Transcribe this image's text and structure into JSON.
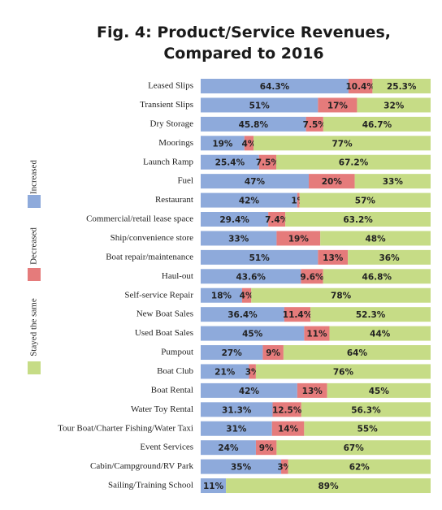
{
  "chart_data": {
    "type": "stacked-bar-horizontal",
    "title": [
      "Fig. 4: Product/Service Revenues,",
      "Compared to 2016"
    ],
    "categories": [
      "Leased Slips",
      "Transient Slips",
      "Dry Storage",
      "Moorings",
      "Launch Ramp",
      "Fuel",
      "Restaurant",
      "Commercial/retail lease space",
      "Ship/convenience store",
      "Boat repair/maintenance",
      "Haul-out",
      "Self-service Repair",
      "New Boat Sales",
      "Used Boat Sales",
      "Pumpout",
      "Boat Club",
      "Boat Rental",
      "Water Toy Rental",
      "Tour Boat/Charter Fishing/Water Taxi",
      "Event Services",
      "Cabin/Campground/RV Park",
      "Sailing/Training School"
    ],
    "series": [
      {
        "name": "Increased",
        "color": "#8eaadb",
        "values": [
          64.3,
          51,
          45.8,
          19,
          25.4,
          47,
          42,
          29.4,
          33,
          51,
          43.6,
          18,
          36.4,
          45,
          27,
          21,
          42,
          31.3,
          31,
          24,
          35,
          11
        ],
        "value_labels": [
          "64.3%",
          "51%",
          "45.8%",
          "19%",
          "25.4%",
          "47%",
          "42%",
          "29.4%",
          "33%",
          "51%",
          "43.6%",
          "18%",
          "36.4%",
          "45%",
          "27%",
          "21%",
          "42%",
          "31.3%",
          "31%",
          "24%",
          "35%",
          "11%"
        ]
      },
      {
        "name": "Decreased",
        "color": "#e57b7b",
        "values": [
          10.4,
          17,
          7.5,
          4,
          7.5,
          20,
          1,
          7.4,
          19,
          13,
          9.6,
          4,
          11.4,
          11,
          9,
          3,
          13,
          12.5,
          14,
          9,
          3,
          null
        ],
        "value_labels": [
          "10.4%",
          "17%",
          "7.5%",
          "4%",
          "7.5%",
          "20%",
          "1%",
          "7.4%",
          "19%",
          "13%",
          "9.6%",
          "4%",
          "11.4%",
          "11%",
          "9%",
          "3%",
          "13%",
          "12.5%",
          "14%",
          "9%",
          "3%",
          null
        ]
      },
      {
        "name": "Stayed the same",
        "color": "#c6dc86",
        "values": [
          25.3,
          32,
          46.7,
          77,
          67.2,
          33,
          57,
          63.2,
          48,
          36,
          46.8,
          78,
          52.3,
          44,
          64,
          76,
          45,
          56.3,
          55,
          67,
          62,
          89
        ],
        "value_labels": [
          "25.3%",
          "32%",
          "46.7%",
          "77%",
          "67.2%",
          "33%",
          "57%",
          "63.2%",
          "48%",
          "36%",
          "46.8%",
          "78%",
          "52.3%",
          "44%",
          "64%",
          "76%",
          "45%",
          "56.3%",
          "55%",
          "67%",
          "62%",
          "89%"
        ]
      }
    ]
  }
}
